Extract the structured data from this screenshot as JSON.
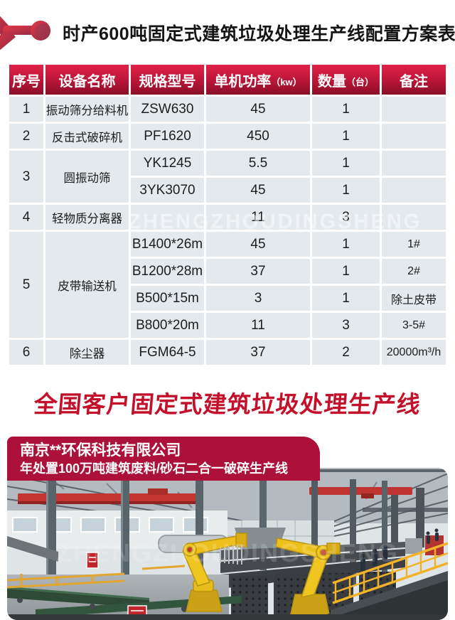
{
  "page": {
    "title": "时产600吨固定式建筑垃圾处理生产线配置方案表"
  },
  "config_table": {
    "columns": [
      {
        "label": "序号"
      },
      {
        "label": "设备名称"
      },
      {
        "label": "规格型号"
      },
      {
        "label": "单机功率",
        "unit": "（kw）"
      },
      {
        "label": "数量",
        "unit": "（台）"
      },
      {
        "label": "备注"
      }
    ],
    "rows": [
      {
        "no": "1",
        "name": "振动筛分给料机",
        "name_span": 1,
        "model": "ZSW630",
        "power": "45",
        "qty": "1",
        "note": ""
      },
      {
        "no": "2",
        "name": "反击式破碎机",
        "name_span": 1,
        "model": "PF1620",
        "power": "450",
        "qty": "1",
        "note": ""
      },
      {
        "no": "3",
        "name": "圆振动筛",
        "name_span": 2,
        "model": "YK1245",
        "power": "5.5",
        "qty": "1",
        "note": ""
      },
      {
        "model": "3YK3070",
        "power": "45",
        "qty": "1",
        "note": ""
      },
      {
        "no": "4",
        "name": "轻物质分离器",
        "name_span": 1,
        "model": "",
        "power": "11",
        "qty": "3",
        "note": ""
      },
      {
        "no": "5",
        "name": "皮带输送机",
        "name_span": 4,
        "model": "B1400*26m",
        "power": "45",
        "qty": "1",
        "note": "1#"
      },
      {
        "model": "B1200*28m",
        "power": "37",
        "qty": "1",
        "note": "2#"
      },
      {
        "model": "B500*15m",
        "power": "3",
        "qty": "1",
        "note": "除土皮带"
      },
      {
        "model": "B800*20m",
        "power": "11",
        "qty": "3",
        "note": "3-5#"
      },
      {
        "no": "6",
        "name": "除尘器",
        "name_span": 1,
        "model": "FGM64-5",
        "power": "37",
        "qty": "2",
        "note": "20000m³/h"
      }
    ]
  },
  "watermark_text": "ZHENGZHOUDINGSHENG",
  "section_title": "全国客户固定式建筑垃圾处理生产线",
  "case_banner": {
    "company": "南京**环保科技有限公司",
    "description": "年处置100万吨建筑废料/砂石二合一破碎生产线"
  },
  "colors": {
    "header_red_top": "#e02248",
    "header_red_bottom": "#8a0e27",
    "cell_bg": "#e4e9ed",
    "banner_red": "#ab1139",
    "accent_red": "#c4112b"
  }
}
